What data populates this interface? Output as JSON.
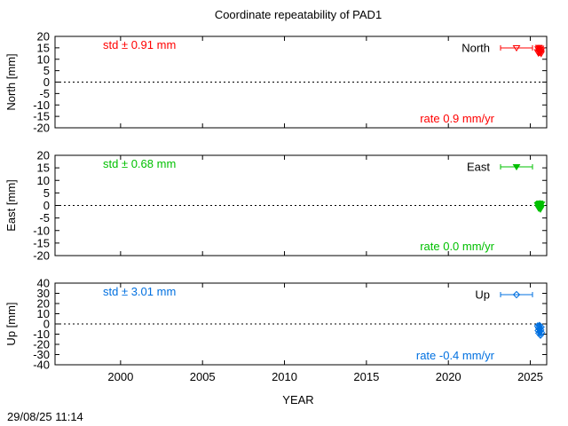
{
  "chart_data": {
    "type": "scatter",
    "title": "Coordinate repeatability of PAD1",
    "xlabel": "YEAR",
    "xlim": [
      1996,
      2026
    ],
    "xticks": [
      "2000",
      "2005",
      "2010",
      "2015",
      "2020",
      "2025"
    ],
    "xtick_values": [
      2000,
      2005,
      2010,
      2015,
      2020,
      2025
    ],
    "timestamp": "29/08/25 11:14",
    "panels": [
      {
        "name": "North",
        "ylabel": "North [mm]",
        "ylim": [
          -20,
          20
        ],
        "yticks": [
          "20",
          "15",
          "10",
          "5",
          "0",
          "-5",
          "-10",
          "-15",
          "-20"
        ],
        "ytick_values": [
          20,
          15,
          10,
          5,
          0,
          -5,
          -10,
          -15,
          -20
        ],
        "color": "#ff0000",
        "marker": "triangle-down-open",
        "std_text": "std ± 0.91 mm",
        "rate_text": "rate  0.9 mm/yr",
        "legend": "North",
        "points": [
          [
            2025.45,
            13.2
          ],
          [
            2025.48,
            14.5
          ],
          [
            2025.5,
            12.6
          ],
          [
            2025.52,
            15.1
          ],
          [
            2025.54,
            13.8
          ],
          [
            2025.56,
            12.9
          ],
          [
            2025.58,
            14.2
          ],
          [
            2025.6,
            13.5
          ],
          [
            2025.62,
            14.8
          ],
          [
            2025.64,
            13.0
          ],
          [
            2025.66,
            12.4
          ],
          [
            2025.68,
            14.0
          ]
        ]
      },
      {
        "name": "East",
        "ylabel": "East [mm]",
        "ylim": [
          -20,
          20
        ],
        "yticks": [
          "20",
          "15",
          "10",
          "5",
          "0",
          "-5",
          "-10",
          "-15",
          "-20"
        ],
        "ytick_values": [
          20,
          15,
          10,
          5,
          0,
          -5,
          -10,
          -15,
          -20
        ],
        "color": "#00c000",
        "marker": "triangle-down-filled",
        "std_text": "std ± 0.68 mm",
        "rate_text": "rate  0.0 mm/yr",
        "legend": "East",
        "points": [
          [
            2025.45,
            0.2
          ],
          [
            2025.48,
            -0.8
          ],
          [
            2025.5,
            0.6
          ],
          [
            2025.52,
            -1.2
          ],
          [
            2025.54,
            0.0
          ],
          [
            2025.56,
            -0.4
          ],
          [
            2025.58,
            0.9
          ],
          [
            2025.6,
            -0.6
          ],
          [
            2025.62,
            -1.5
          ],
          [
            2025.64,
            0.3
          ],
          [
            2025.66,
            -0.9
          ],
          [
            2025.68,
            0.5
          ]
        ]
      },
      {
        "name": "Up",
        "ylabel": "Up [mm]",
        "ylim": [
          -40,
          40
        ],
        "yticks": [
          "40",
          "30",
          "20",
          "10",
          "0",
          "-10",
          "-20",
          "-30",
          "-40"
        ],
        "ytick_values": [
          40,
          30,
          20,
          10,
          0,
          -10,
          -20,
          -30,
          -40
        ],
        "color": "#0070e0",
        "marker": "diamond-open",
        "std_text": "std ± 3.01 mm",
        "rate_text": "rate -0.4 mm/yr",
        "legend": "Up",
        "points": [
          [
            2025.45,
            -2.0
          ],
          [
            2025.48,
            -6.5
          ],
          [
            2025.5,
            -3.5
          ],
          [
            2025.52,
            -9.0
          ],
          [
            2025.54,
            -5.0
          ],
          [
            2025.56,
            -1.5
          ],
          [
            2025.58,
            -7.5
          ],
          [
            2025.6,
            -4.0
          ],
          [
            2025.62,
            -11.0
          ],
          [
            2025.64,
            -6.0
          ],
          [
            2025.66,
            -3.0
          ],
          [
            2025.68,
            -8.5
          ]
        ]
      }
    ]
  }
}
